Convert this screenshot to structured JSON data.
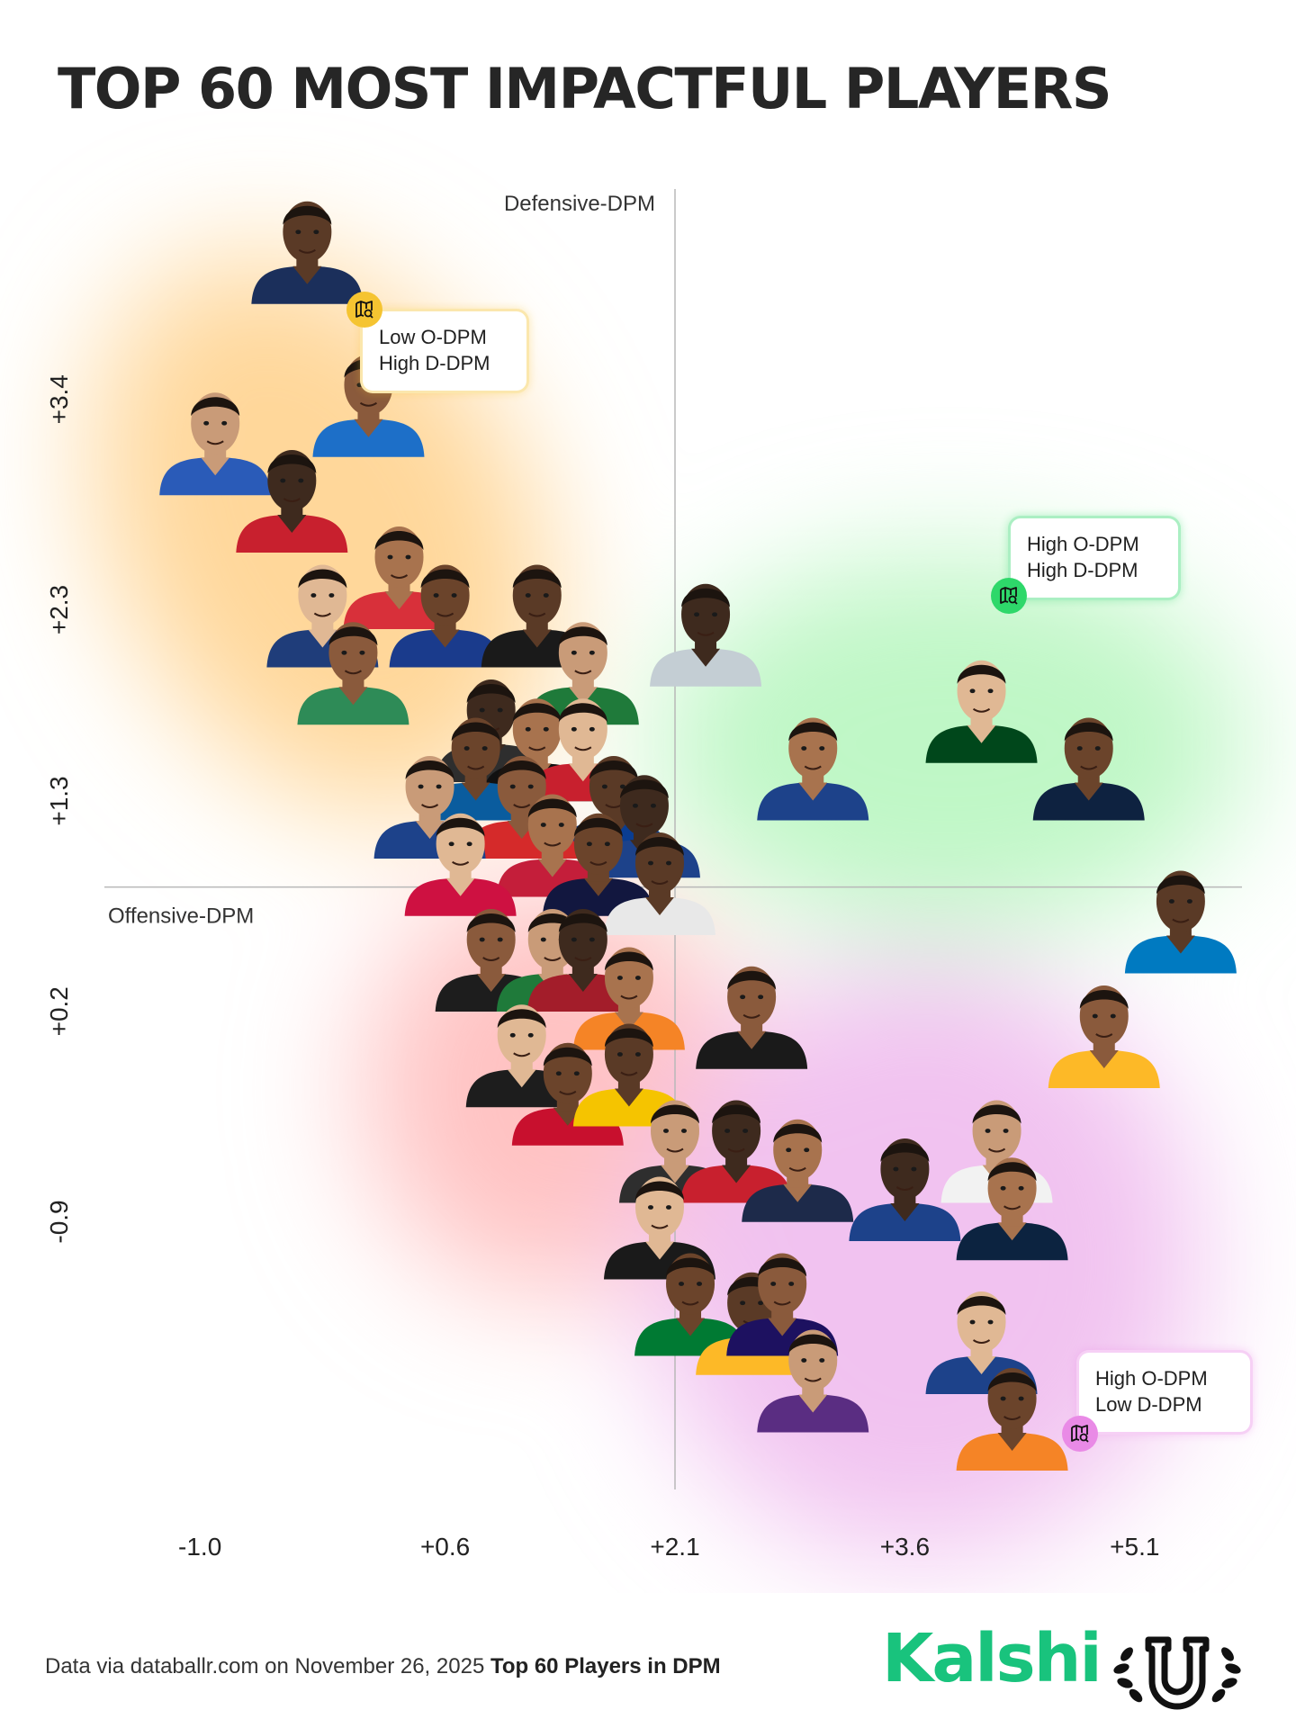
{
  "title": "TOP 60 MOST IMPACTFUL PLAYERS",
  "callouts": [
    {
      "lines": [
        "Low O-DPM",
        "High D-DPM"
      ],
      "color": "#f5c431",
      "icon": "map-search-icon"
    },
    {
      "lines": [
        "High O-DPM",
        "High D-DPM"
      ],
      "color": "#2ed86a",
      "icon": "map-search-icon"
    },
    {
      "lines": [
        "High O-DPM",
        "Low D-DPM"
      ],
      "color": "#e98ae6",
      "icon": "map-search-icon"
    }
  ],
  "footer": {
    "source_text": "Data via databallr.com on November 26, 2025",
    "source_bold": "Top 60 Players in DPM",
    "brand": "Kalshi",
    "brand_color": "#19c37d"
  },
  "chart_data": {
    "type": "scatter",
    "xlabel": "Offensive-DPM",
    "ylabel": "Defensive-DPM",
    "x_ticks": [
      "-1.0",
      "+0.6",
      "+2.1",
      "+3.6",
      "+5.1"
    ],
    "y_ticks": [
      "+3.4",
      "+2.3",
      "+1.3",
      "+0.2",
      "-0.9"
    ],
    "xlim": [
      -1.6,
      5.8
    ],
    "ylim": [
      -2.3,
      4.5
    ],
    "crosshair": {
      "x": 2.1,
      "y": 0.85
    },
    "marker": "player headshot",
    "quadrant_colors": {
      "low_o_high_d": "#ffd79a",
      "high_o_high_d": "#bff7c6",
      "low_o_low_d": "#ffc2c2",
      "high_o_low_d": "#f1c2f0"
    },
    "points": [
      {
        "x": -0.3,
        "y": 4.2,
        "jersey": "#1b2f5b"
      },
      {
        "x": 0.1,
        "y": 3.4,
        "jersey": "#1d6fc8"
      },
      {
        "x": -0.9,
        "y": 3.2,
        "jersey": "#2a5bb8"
      },
      {
        "x": -0.4,
        "y": 2.9,
        "jersey": "#c8202e"
      },
      {
        "x": 0.3,
        "y": 2.5,
        "jersey": "#d8303a"
      },
      {
        "x": -0.2,
        "y": 2.3,
        "jersey": "#1f3d7a"
      },
      {
        "x": 0.6,
        "y": 2.3,
        "jersey": "#1a3b8c"
      },
      {
        "x": 1.2,
        "y": 2.3,
        "jersey": "#1a1a1a"
      },
      {
        "x": 0.0,
        "y": 2.0,
        "jersey": "#2e8b57"
      },
      {
        "x": 1.5,
        "y": 2.0,
        "jersey": "#1f7a3a"
      },
      {
        "x": 0.9,
        "y": 1.7,
        "jersey": "#2e2e2e"
      },
      {
        "x": 1.2,
        "y": 1.6,
        "jersey": "#111111"
      },
      {
        "x": 1.5,
        "y": 1.6,
        "jersey": "#c8202e"
      },
      {
        "x": 0.8,
        "y": 1.5,
        "jersey": "#0a5c9e"
      },
      {
        "x": 1.7,
        "y": 1.3,
        "jersey": "#0a3d91"
      },
      {
        "x": 1.1,
        "y": 1.3,
        "jersey": "#d52a2a"
      },
      {
        "x": 0.5,
        "y": 1.3,
        "jersey": "#1d428a"
      },
      {
        "x": 1.9,
        "y": 1.2,
        "jersey": "#1d428a"
      },
      {
        "x": 1.3,
        "y": 1.1,
        "jersey": "#c41e3a"
      },
      {
        "x": 0.7,
        "y": 1.0,
        "jersey": "#ce1141"
      },
      {
        "x": 1.6,
        "y": 1.0,
        "jersey": "#12173f"
      },
      {
        "x": 2.0,
        "y": 0.9,
        "jersey": "#e8e8e8"
      },
      {
        "x": 0.9,
        "y": 0.5,
        "jersey": "#1d1d1d"
      },
      {
        "x": 1.3,
        "y": 0.5,
        "jersey": "#1f7a3a"
      },
      {
        "x": 1.5,
        "y": 0.5,
        "jersey": "#a31d2a"
      },
      {
        "x": 1.8,
        "y": 0.3,
        "jersey": "#f58426"
      },
      {
        "x": 1.1,
        "y": 0.0,
        "jersey": "#1d1d1d"
      },
      {
        "x": 1.4,
        "y": -0.2,
        "jersey": "#c8102e"
      },
      {
        "x": 1.8,
        "y": -0.1,
        "jersey": "#f5c400"
      },
      {
        "x": 2.6,
        "y": 0.2,
        "jersey": "#1a1a1a"
      },
      {
        "x": 2.1,
        "y": -0.5,
        "jersey": "#2e2e2e"
      },
      {
        "x": 2.5,
        "y": -0.5,
        "jersey": "#c8202e"
      },
      {
        "x": 2.9,
        "y": -0.6,
        "jersey": "#1d2a4a"
      },
      {
        "x": 2.0,
        "y": -0.9,
        "jersey": "#1a1a1a"
      },
      {
        "x": 2.2,
        "y": -1.3,
        "jersey": "#007a33"
      },
      {
        "x": 2.6,
        "y": -1.4,
        "jersey": "#fdb927"
      },
      {
        "x": 2.8,
        "y": -1.3,
        "jersey": "#1d1160"
      },
      {
        "x": 3.0,
        "y": -1.7,
        "jersey": "#5a2d82"
      },
      {
        "x": 2.3,
        "y": 2.2,
        "jersey": "#c4ced4"
      },
      {
        "x": 3.0,
        "y": 1.5,
        "jersey": "#1d428a"
      },
      {
        "x": 4.1,
        "y": 1.8,
        "jersey": "#00471b"
      },
      {
        "x": 4.8,
        "y": 1.5,
        "jersey": "#0e2240"
      },
      {
        "x": 5.4,
        "y": 0.7,
        "jersey": "#007ac1"
      },
      {
        "x": 4.9,
        "y": 0.1,
        "jersey": "#fdb927"
      },
      {
        "x": 4.2,
        "y": -0.5,
        "jersey": "#f2f2f2"
      },
      {
        "x": 3.6,
        "y": -0.7,
        "jersey": "#1d428a"
      },
      {
        "x": 4.3,
        "y": -0.8,
        "jersey": "#0c2340"
      },
      {
        "x": 4.1,
        "y": -1.5,
        "jersey": "#1d428a"
      },
      {
        "x": 4.3,
        "y": -1.9,
        "jersey": "#f58426"
      }
    ]
  }
}
